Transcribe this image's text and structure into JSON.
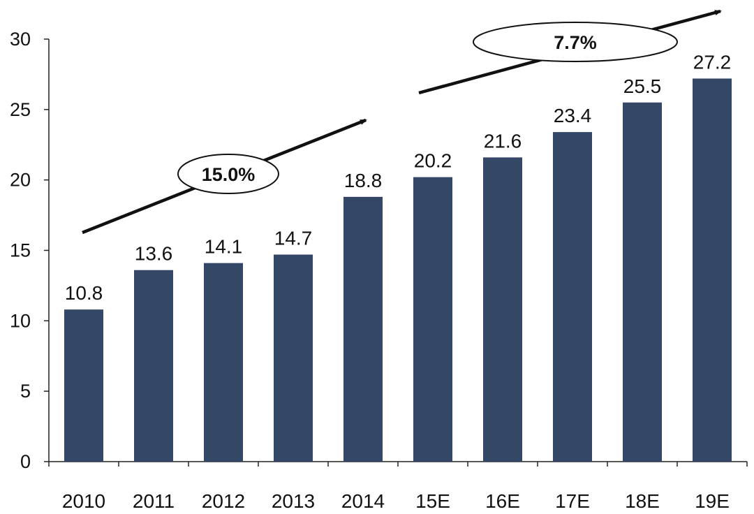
{
  "chart_data": {
    "type": "bar",
    "categories": [
      "2010",
      "2011",
      "2012",
      "2013",
      "2014",
      "15E",
      "16E",
      "17E",
      "18E",
      "19E"
    ],
    "values": [
      10.8,
      13.6,
      14.1,
      14.7,
      18.8,
      20.2,
      21.6,
      23.4,
      25.5,
      27.2
    ],
    "data_labels": [
      "10.8",
      "13.6",
      "14.1",
      "14.7",
      "18.8",
      "20.2",
      "21.6",
      "23.4",
      "25.5",
      "27.2"
    ],
    "ylim": [
      0,
      30
    ],
    "yticks": [
      "0",
      "5",
      "10",
      "15",
      "20",
      "25",
      "30"
    ],
    "title": "",
    "xlabel": "",
    "ylabel": "",
    "grid": false,
    "bar_color": "#344766",
    "annotations": [
      {
        "text": "15.0%",
        "from_category": "2010",
        "to_category": "2014"
      },
      {
        "text": "7.7%",
        "from_category": "15E",
        "to_category": "19E"
      }
    ]
  }
}
